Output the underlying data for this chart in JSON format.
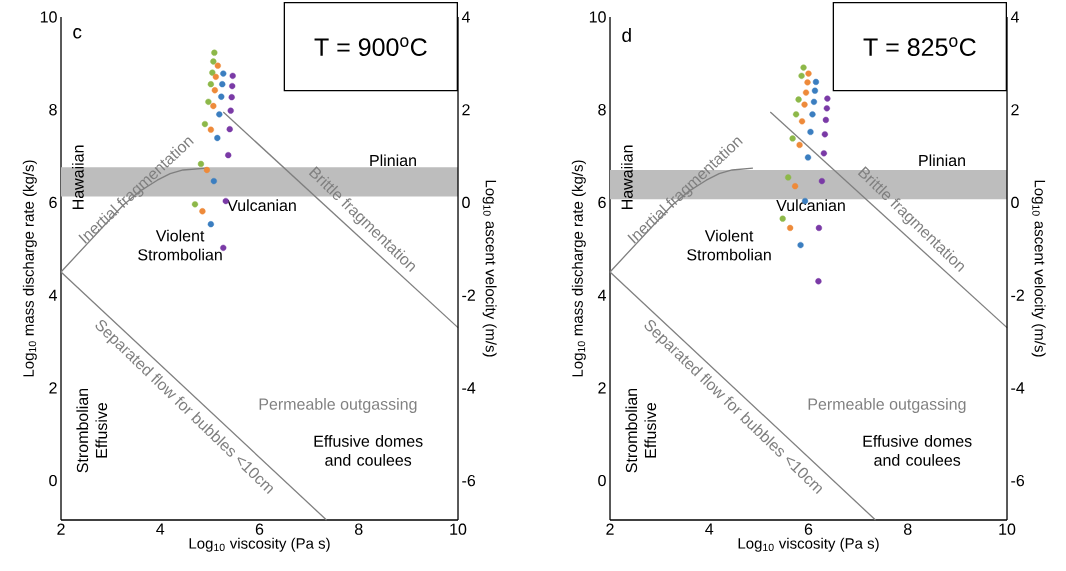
{
  "chart_data": [
    {
      "type": "scatter",
      "title": "c",
      "subtitle": "T = 900$^{o}$C",
      "xlabel": "Log$_{10}$ viscosity (Pa s)",
      "ylabel": "Log$_{10}$ mass discharge rate (kg/s)",
      "y2label": "Log$_{10}$ ascent velocity (m/s)",
      "xlim": [
        2,
        10
      ],
      "ylim": [
        -0.85,
        10
      ],
      "y2lim": [
        -6.85,
        4
      ],
      "xticks": [
        2,
        4,
        6,
        8,
        10
      ],
      "yticks": [
        0,
        2,
        4,
        6,
        8,
        10
      ],
      "y2ticks": [
        -6,
        -4,
        -2,
        0,
        2,
        4
      ],
      "bands": [
        {
          "axis": "y",
          "from": 6.13,
          "to": 6.76,
          "color": "#bdbdbd"
        }
      ],
      "annotations": [
        "Hawaiian",
        "Plinian",
        "Vulcanian",
        "Violent Strombolian",
        "Strombolian Effusive",
        "Permeable outgassing",
        "Effusive domes and coulees"
      ],
      "series": [
        {
          "color": "#8db849",
          "x": [
            5.09,
            5.07,
            5.05,
            5.02,
            4.97,
            4.9,
            4.82,
            4.7
          ],
          "values": [
            9.23,
            9.04,
            8.8,
            8.55,
            8.17,
            7.69,
            6.83,
            5.96
          ]
        },
        {
          "color": "#ee8a3a",
          "x": [
            5.16,
            5.12,
            5.1,
            5.07,
            5.02,
            4.94,
            4.85
          ],
          "values": [
            8.95,
            8.71,
            8.42,
            8.08,
            7.57,
            6.7,
            5.81
          ]
        },
        {
          "color": "#3b7ec0",
          "x": [
            5.27,
            5.25,
            5.23,
            5.19,
            5.15,
            5.08,
            5.02
          ],
          "values": [
            8.78,
            8.55,
            8.28,
            7.9,
            7.39,
            6.46,
            5.53
          ]
        },
        {
          "color": "#7a3aa6",
          "x": [
            5.46,
            5.45,
            5.44,
            5.42,
            5.4,
            5.37,
            5.32,
            5.27
          ],
          "values": [
            8.73,
            8.51,
            8.27,
            7.98,
            7.58,
            7.02,
            6.03,
            5.02
          ]
        },
        {
          "type": "line",
          "name": "Inertial fragmentation",
          "color": "#7f7f7f",
          "x": [
            2,
            3.25,
            3.6,
            3.94,
            4.2,
            4.46,
            4.94
          ],
          "values": [
            4.5,
            5.94,
            6.25,
            6.48,
            6.62,
            6.7,
            6.74
          ]
        },
        {
          "type": "line",
          "name": "Separated flow for bubbles <10cm",
          "color": "#7f7f7f",
          "x": [
            2,
            7.35
          ],
          "values": [
            4.5,
            -0.85
          ]
        },
        {
          "type": "line",
          "name": "Brittle fragmentation",
          "color": "#7f7f7f",
          "x": [
            5.27,
            10
          ],
          "values": [
            7.95,
            3.3
          ]
        }
      ]
    },
    {
      "type": "scatter",
      "title": "d",
      "subtitle": "T = 825$^{o}$C",
      "xlabel": "Log$_{10}$ viscosity (Pa s)",
      "ylabel": "Log$_{10}$ mass discharge rate (kg/s)",
      "y2label": "Log$_{10}$ ascent velocity (m/s)",
      "xlim": [
        2,
        10
      ],
      "ylim": [
        -0.85,
        10
      ],
      "y2lim": [
        -6.85,
        4
      ],
      "xticks": [
        2,
        4,
        6,
        8,
        10
      ],
      "yticks": [
        0,
        2,
        4,
        6,
        8,
        10
      ],
      "y2ticks": [
        -6,
        -4,
        -2,
        0,
        2,
        4
      ],
      "bands": [
        {
          "axis": "y",
          "from": 6.07,
          "to": 6.7,
          "color": "#bdbdbd"
        }
      ],
      "annotations": [
        "Hawaiian",
        "Plinian",
        "Vulcanian",
        "Violent Strombolian",
        "Strombolian Effusive",
        "Permeable outgassing",
        "Effusive domes and coulees"
      ],
      "series": [
        {
          "color": "#8db849",
          "x": [
            5.9,
            5.86,
            5.8,
            5.75,
            5.68,
            5.59,
            5.48
          ],
          "values": [
            8.91,
            8.73,
            8.22,
            7.9,
            7.38,
            6.54,
            5.65
          ]
        },
        {
          "color": "#ee8a3a",
          "x": [
            6.0,
            5.98,
            5.95,
            5.92,
            5.87,
            5.82,
            5.73,
            5.63
          ],
          "values": [
            8.78,
            8.59,
            8.37,
            8.11,
            7.75,
            7.24,
            6.35,
            5.45
          ]
        },
        {
          "color": "#3b7ec0",
          "x": [
            6.15,
            6.13,
            6.11,
            6.08,
            6.04,
            5.99,
            5.93,
            5.84
          ],
          "values": [
            8.6,
            8.41,
            8.17,
            7.9,
            7.52,
            6.97,
            6.03,
            5.08
          ]
        },
        {
          "color": "#7a3aa6",
          "x": [
            6.38,
            6.37,
            6.35,
            6.33,
            6.31,
            6.27,
            6.21,
            6.2
          ],
          "values": [
            8.24,
            8.03,
            7.78,
            7.47,
            7.06,
            6.46,
            5.45,
            4.3
          ]
        },
        {
          "type": "line",
          "name": "Inertial fragmentation",
          "color": "#7f7f7f",
          "x": [
            2,
            3.25,
            3.6,
            3.94,
            4.2,
            4.46,
            4.88
          ],
          "values": [
            4.5,
            5.94,
            6.25,
            6.48,
            6.62,
            6.7,
            6.74
          ]
        },
        {
          "type": "line",
          "name": "Separated flow for bubbles <10cm",
          "color": "#7f7f7f",
          "x": [
            2,
            7.35
          ],
          "values": [
            4.5,
            -0.85
          ]
        },
        {
          "type": "line",
          "name": "Brittle fragmentation",
          "color": "#7f7f7f",
          "x": [
            5.23,
            10
          ],
          "values": [
            7.95,
            3.3
          ]
        }
      ]
    }
  ]
}
